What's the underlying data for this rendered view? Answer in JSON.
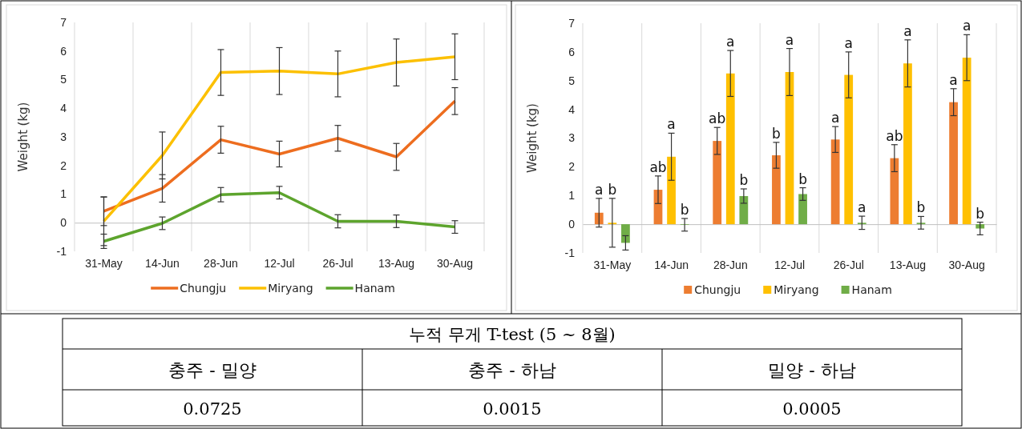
{
  "chart_data": [
    {
      "type": "line",
      "ylabel": "Weight (kg)",
      "categories": [
        "31-May",
        "14-Jun",
        "28-Jun",
        "12-Jul",
        "26-Jul",
        "13-Aug",
        "30-Aug"
      ],
      "ylim": [
        -1,
        7
      ],
      "yticks": [
        -1,
        0,
        1,
        2,
        3,
        4,
        5,
        6,
        7
      ],
      "grid": "x",
      "legend": "bottom",
      "marker": "none",
      "line_style": "solid",
      "series": [
        {
          "name": "Chungju",
          "color": "#ed6d1f",
          "values": [
            0.4,
            1.2,
            2.9,
            2.4,
            2.95,
            2.3,
            4.25
          ],
          "errors": [
            0.5,
            0.48,
            0.47,
            0.45,
            0.45,
            0.47,
            0.47
          ]
        },
        {
          "name": "Miryang",
          "color": "#fcc000",
          "values": [
            0.05,
            2.35,
            5.25,
            5.3,
            5.2,
            5.6,
            5.8
          ],
          "errors": [
            0.85,
            0.82,
            0.8,
            0.82,
            0.8,
            0.82,
            0.8
          ]
        },
        {
          "name": "Hanam",
          "color": "#5da42d",
          "values": [
            -0.65,
            -0.02,
            0.98,
            1.05,
            0.05,
            0.05,
            -0.15
          ],
          "errors": [
            0.25,
            0.22,
            0.25,
            0.22,
            0.23,
            0.22,
            0.22
          ]
        }
      ]
    },
    {
      "type": "bar",
      "ylabel": "Weight (kg)",
      "categories": [
        "31-May",
        "14-Jun",
        "28-Jun",
        "12-Jul",
        "26-Jul",
        "13-Aug",
        "30-Aug"
      ],
      "ylim": [
        -1,
        7
      ],
      "yticks": [
        -1,
        0,
        1,
        2,
        3,
        4,
        5,
        6,
        7
      ],
      "grid": "x",
      "legend": "bottom",
      "series": [
        {
          "name": "Chungju",
          "color": "#ed7d31",
          "values": [
            0.4,
            1.2,
            2.9,
            2.4,
            2.95,
            2.3,
            4.25
          ],
          "errors": [
            0.5,
            0.48,
            0.47,
            0.45,
            0.45,
            0.47,
            0.47
          ],
          "value_labels": [
            "a",
            "ab",
            "ab",
            "b",
            "a",
            "ab",
            "a"
          ]
        },
        {
          "name": "Miryang",
          "color": "#ffc000",
          "values": [
            0.05,
            2.35,
            5.25,
            5.3,
            5.2,
            5.6,
            5.8
          ],
          "errors": [
            0.85,
            0.82,
            0.8,
            0.82,
            0.8,
            0.82,
            0.8
          ],
          "value_labels": [
            "b",
            "a",
            "a",
            "a",
            "a",
            "a",
            "a"
          ]
        },
        {
          "name": "Hanam",
          "color": "#70ad47",
          "values": [
            -0.65,
            -0.02,
            0.98,
            1.05,
            0.05,
            0.05,
            -0.15
          ],
          "errors": [
            0.25,
            0.22,
            0.25,
            0.22,
            0.23,
            0.22,
            0.22
          ],
          "value_labels": [
            null,
            "b",
            "b",
            "b",
            "a",
            "b",
            "b"
          ]
        }
      ]
    },
    {
      "type": "other",
      "title": "누적 무게 T-test (5 ~ 8월)",
      "categories": [
        "충주 - 밀양",
        "충주 - 하남",
        "밀양 - 하남"
      ],
      "values": [
        0.0725,
        0.0015,
        0.0005
      ],
      "data_labels": true
    }
  ]
}
